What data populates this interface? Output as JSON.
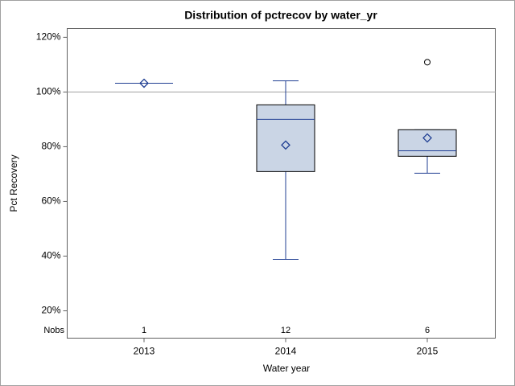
{
  "chart_data": {
    "type": "box",
    "title": "Distribution of pctrecov by water_yr",
    "x_label": "Water year",
    "y_label": "Pct Recovery",
    "categories": [
      "2013",
      "2014",
      "2015"
    ],
    "boxes": [
      {
        "min": 103.2,
        "q1": 103.2,
        "median": 103.2,
        "q3": 103.2,
        "max": 103.2,
        "mean": 103.2,
        "outliers": []
      },
      {
        "min": 38.8,
        "q1": 70.9,
        "median": 90,
        "q3": 95.3,
        "max": 104.1,
        "mean": 80.6,
        "outliers": []
      },
      {
        "min": 70.3,
        "q1": 76.5,
        "median": 78.5,
        "q3": 86.2,
        "max": 86.2,
        "mean": 83.2,
        "outliers": [
          110.9
        ]
      }
    ],
    "nobs_label": "Nobs",
    "nobs": [
      1,
      12,
      6
    ],
    "refline": 100,
    "box_color": "#cad5e5",
    "line_color": "#203f93",
    "ylim": [
      10,
      123.2
    ],
    "yticks": [
      {
        "value": 20,
        "label": "20%"
      },
      {
        "value": 40,
        "label": "40%"
      },
      {
        "value": 60,
        "label": "60%"
      },
      {
        "value": 80,
        "label": "80%"
      },
      {
        "value": 100,
        "label": "100%"
      },
      {
        "value": 120,
        "label": "120%"
      }
    ]
  }
}
